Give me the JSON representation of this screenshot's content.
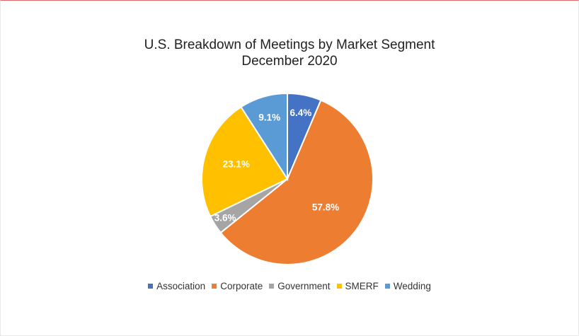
{
  "chart_data": {
    "type": "pie",
    "title": "U.S. Breakdown of Meetings by Market Segment",
    "subtitle": "December 2020",
    "categories": [
      "Association",
      "Corporate",
      "Government",
      "SMERF",
      "Wedding"
    ],
    "values": [
      6.4,
      57.8,
      3.6,
      23.1,
      9.1
    ],
    "labels": [
      "6.4%",
      "57.8%",
      "3.6%",
      "23.1%",
      "9.1%"
    ],
    "colors": [
      "#4472c4",
      "#ed7d31",
      "#a5a5a5",
      "#ffc000",
      "#5b9bd5"
    ],
    "legend": "bottom"
  }
}
